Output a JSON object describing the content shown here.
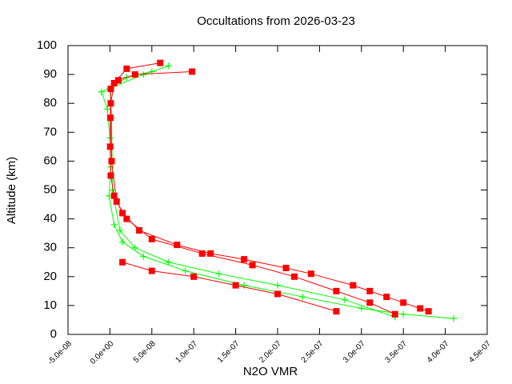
{
  "chart_data": {
    "type": "scatter",
    "title": "Occultations from 2026-03-23",
    "x_label": "N2O VMR",
    "y_label": "Altitude (km)",
    "xlim": [
      -5e-08,
      4.5e-07
    ],
    "ylim": [
      0,
      100
    ],
    "xticks": [
      {
        "value": -5e-08,
        "label": "-5.0e-08"
      },
      {
        "value": 0,
        "label": "0.0e+00"
      },
      {
        "value": 5e-08,
        "label": "5.0e-08"
      },
      {
        "value": 1e-07,
        "label": "1.0e-07"
      },
      {
        "value": 1.5e-07,
        "label": "1.5e-07"
      },
      {
        "value": 2e-07,
        "label": "2.0e-07"
      },
      {
        "value": 2.5e-07,
        "label": "2.5e-07"
      },
      {
        "value": 3e-07,
        "label": "3.0e-07"
      },
      {
        "value": 3.5e-07,
        "label": "3.5e-07"
      },
      {
        "value": 4e-07,
        "label": "4.0e-07"
      },
      {
        "value": 4.5e-07,
        "label": "4.5e-07"
      }
    ],
    "yticks": [
      0,
      10,
      20,
      30,
      40,
      50,
      60,
      70,
      80,
      90,
      100
    ],
    "series": [
      {
        "color": "#00ff00",
        "marker": "plus",
        "x": [
          7e-08,
          4e-08,
          -1e-08,
          -3e-09,
          0,
          1e-09,
          -1e-09,
          5e-09,
          1.5e-08,
          4e-08,
          9e-08,
          1.6e-07,
          2.3e-07,
          3e-07,
          3.5e-07,
          4.1e-07
        ],
        "values": [
          93,
          90,
          84,
          78,
          68,
          58,
          48,
          38,
          32,
          27,
          22,
          17,
          13,
          9,
          7,
          5.5
        ]
      },
      {
        "color": "#00ff00",
        "marker": "plus",
        "x": [
          5e-08,
          2e-08,
          0,
          2e-09,
          3e-09,
          1.2e-08,
          3e-08,
          7e-08,
          1.3e-07,
          2e-07,
          2.8e-07,
          3.4e-07
        ],
        "values": [
          91,
          89,
          85,
          75,
          50,
          36,
          30,
          25,
          21,
          17,
          12,
          6
        ]
      },
      {
        "color": "#ff0000",
        "marker": "square",
        "x": [
          9.8e-08,
          3e-08,
          1e-08,
          1e-09,
          5e-10,
          3e-10,
          1e-09,
          5e-09,
          1.5e-08,
          3.5e-08,
          8e-08,
          1.2e-07,
          1.6e-07,
          2.1e-07,
          2.4e-07,
          2.9e-07,
          3.1e-07,
          3.3e-07,
          3.5e-07,
          3.7e-07,
          3.8e-07
        ],
        "values": [
          91,
          90,
          88,
          85,
          75,
          65,
          55,
          48,
          42,
          36,
          31,
          28,
          26,
          23,
          21,
          17,
          15,
          13,
          11,
          9,
          8
        ]
      },
      {
        "color": "#ff0000",
        "marker": "square",
        "x": [
          6e-08,
          2e-08,
          5e-09,
          1e-09,
          2e-09,
          8e-09,
          2e-08,
          5e-08,
          1.1e-07,
          1.7e-07,
          2.2e-07,
          2.7e-07,
          3.1e-07,
          3.4e-07
        ],
        "values": [
          94,
          92,
          87,
          80,
          60,
          46,
          40,
          33,
          28,
          24,
          20,
          15,
          11,
          7
        ]
      },
      {
        "color": "#ff0000",
        "marker": "square",
        "x": [
          1.5e-08,
          5e-08,
          1e-07,
          1.5e-07,
          2e-07,
          2.7e-07
        ],
        "values": [
          25,
          22,
          20,
          17,
          14,
          8
        ]
      }
    ]
  }
}
